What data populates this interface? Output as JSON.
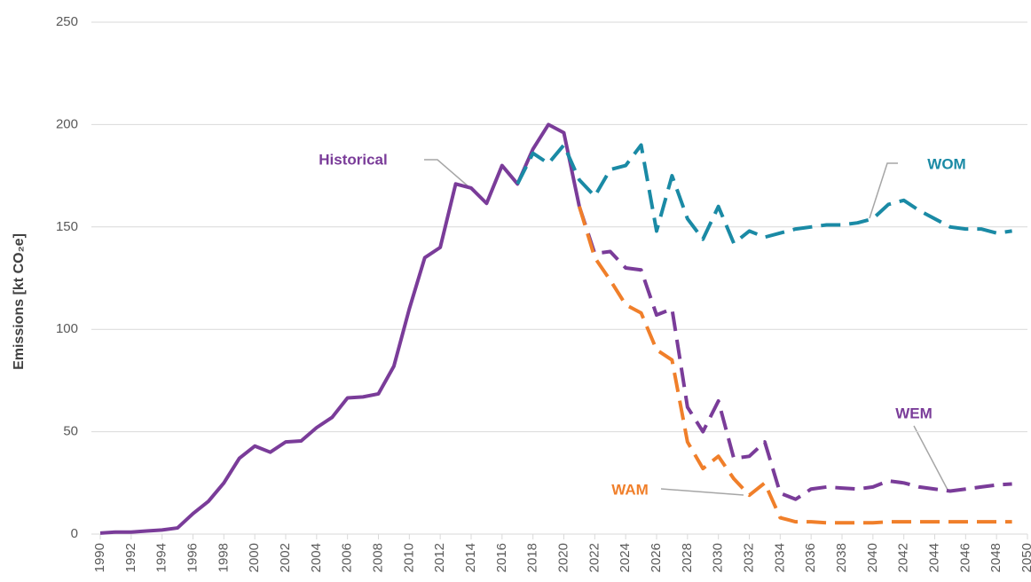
{
  "chart_data": {
    "type": "line",
    "ylabel": "Emissions [kt CO₂e]",
    "x": [
      1990,
      1991,
      1992,
      1993,
      1994,
      1995,
      1996,
      1997,
      1998,
      1999,
      2000,
      2001,
      2002,
      2003,
      2004,
      2005,
      2006,
      2007,
      2008,
      2009,
      2010,
      2011,
      2012,
      2013,
      2014,
      2015,
      2016,
      2017,
      2018,
      2019,
      2020,
      2021,
      2022,
      2023,
      2024,
      2025,
      2026,
      2027,
      2028,
      2029,
      2030,
      2031,
      2032,
      2033,
      2034,
      2035,
      2036,
      2037,
      2038,
      2039,
      2040,
      2041,
      2042,
      2043,
      2044,
      2045,
      2046,
      2047,
      2048,
      2049,
      2050
    ],
    "xlim": [
      1990,
      2050
    ],
    "xticks": [
      1990,
      1992,
      1994,
      1996,
      1998,
      2000,
      2002,
      2004,
      2006,
      2008,
      2010,
      2012,
      2014,
      2016,
      2018,
      2020,
      2022,
      2024,
      2026,
      2028,
      2030,
      2032,
      2034,
      2036,
      2038,
      2040,
      2042,
      2044,
      2046,
      2048,
      2050
    ],
    "ylim": [
      0,
      250
    ],
    "yticks": [
      0,
      50,
      100,
      150,
      200,
      250
    ],
    "grid": true,
    "series": [
      {
        "name": "Historical",
        "color": "#7a3c99",
        "dashed": false,
        "values": [
          0.5,
          1,
          1,
          1.5,
          2,
          3,
          10,
          16,
          25,
          37,
          43,
          40,
          45,
          45.5,
          52,
          57,
          66.5,
          67,
          68.5,
          82,
          110,
          135,
          140,
          171,
          169,
          161.5,
          180,
          171,
          188,
          200,
          196,
          160,
          null,
          null,
          null,
          null,
          null,
          null,
          null,
          null,
          null,
          null,
          null,
          null,
          null,
          null,
          null,
          null,
          null,
          null,
          null,
          null,
          null,
          null,
          null,
          null,
          null,
          null,
          null,
          null,
          null
        ]
      },
      {
        "name": "WOM",
        "color": "#1a8aa5",
        "dashed": true,
        "values": [
          null,
          null,
          null,
          null,
          null,
          null,
          null,
          null,
          null,
          null,
          null,
          null,
          null,
          null,
          null,
          null,
          null,
          null,
          null,
          null,
          null,
          null,
          null,
          null,
          null,
          null,
          null,
          171,
          186,
          181,
          190,
          173,
          165,
          178,
          180,
          190,
          148,
          175,
          154,
          144,
          160,
          142,
          148,
          145,
          147,
          149,
          150,
          151,
          151,
          152,
          154,
          161,
          163,
          158,
          154,
          150,
          149,
          149,
          147,
          148,
          null
        ]
      },
      {
        "name": "WEM",
        "color": "#7a3c99",
        "dashed": true,
        "values": [
          null,
          null,
          null,
          null,
          null,
          null,
          null,
          null,
          null,
          null,
          null,
          null,
          null,
          null,
          null,
          null,
          null,
          null,
          null,
          null,
          null,
          null,
          null,
          null,
          null,
          null,
          null,
          null,
          null,
          null,
          null,
          160,
          137,
          138,
          130,
          129,
          107,
          110,
          62,
          50,
          65,
          37,
          38,
          45,
          20,
          17,
          22,
          23,
          22.5,
          22,
          23,
          26,
          25,
          23,
          22,
          21,
          22,
          23,
          24,
          24.5,
          null
        ]
      },
      {
        "name": "WAM",
        "color": "#f07f2a",
        "dashed": true,
        "values": [
          null,
          null,
          null,
          null,
          null,
          null,
          null,
          null,
          null,
          null,
          null,
          null,
          null,
          null,
          null,
          null,
          null,
          null,
          null,
          null,
          null,
          null,
          null,
          null,
          null,
          null,
          null,
          null,
          null,
          null,
          null,
          160,
          135,
          124,
          112,
          108,
          90,
          85,
          45,
          32,
          38,
          27,
          19,
          25,
          8,
          6,
          6,
          5.5,
          5.5,
          5.5,
          5.5,
          6,
          6,
          6,
          6,
          6,
          6,
          6,
          6,
          6,
          null
        ]
      }
    ]
  }
}
